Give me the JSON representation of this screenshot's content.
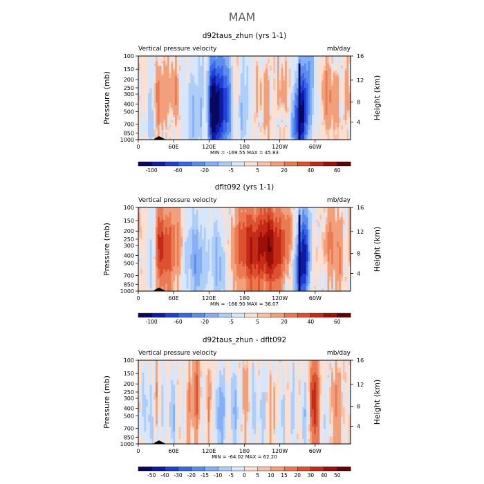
{
  "figure_title": "MAM",
  "chart_data": [
    {
      "type": "heatmap",
      "title": "d92taus_zhun (yrs 1-1)",
      "left_label": "Vertical pressure velocity",
      "right_label": "mb/day",
      "ylabel": "Pressure (mb)",
      "ylabel_right": "Height (km)",
      "y_ticks": [
        "100",
        "150",
        "200",
        "250",
        "300",
        "400",
        "500",
        "700",
        "850",
        "1000"
      ],
      "y_right_ticks": [
        "16",
        "12",
        "8",
        "4"
      ],
      "x_ticks": [
        "0",
        "60E",
        "120E",
        "180",
        "120W",
        "60W"
      ],
      "stats_text": "MIN = -169.55   MAX =   45.83",
      "levels": [
        "-100",
        "-60",
        "-20",
        "-5",
        "5",
        "20",
        "40",
        "60"
      ],
      "colors": [
        "#08085e",
        "#0d1ba5",
        "#1f3fd6",
        "#3868e8",
        "#5a8df0",
        "#86b0f6",
        "#aecdf9",
        "#d7e7fb",
        "#fbe0d2",
        "#f7c2a6",
        "#f2a07c",
        "#ea7a52",
        "#dc5230",
        "#c52a17",
        "#9b1109",
        "#600404"
      ],
      "features": {
        "dry": [
          [
            30,
            40,
            0.65
          ],
          [
            50,
            26,
            0.5
          ],
          [
            120,
            8,
            0.2
          ],
          [
            160,
            10,
            0.2
          ],
          [
            200,
            8,
            0.3
          ],
          [
            225,
            12,
            0.3
          ],
          [
            250,
            28,
            0.5
          ],
          [
            295,
            22,
            0.45
          ],
          [
            335,
            30,
            0.55
          ]
        ],
        "wet": [
          [
            10,
            10,
            0.55,
            12
          ],
          [
            22,
            5,
            1.1,
            0
          ],
          [
            55,
            12,
            0.35,
            0
          ],
          [
            77,
            5,
            0.8,
            0
          ],
          [
            88,
            4,
            0.6,
            0
          ],
          [
            97,
            5,
            0.9,
            0
          ],
          [
            106,
            4,
            0.7,
            0
          ],
          [
            125,
            6,
            1.5,
            0
          ],
          [
            137,
            10,
            2.2,
            0
          ],
          [
            152,
            5,
            1.0,
            0
          ],
          [
            175,
            5,
            0.7,
            0
          ],
          [
            185,
            5,
            0.6,
            0
          ],
          [
            230,
            4,
            0.4,
            0
          ],
          [
            280,
            13,
            2.8,
            10
          ],
          [
            305,
            4,
            0.5,
            0
          ]
        ],
        "break": 271,
        "base": -0.35
      }
    },
    {
      "type": "heatmap",
      "title": "dflt092 (yrs 1-1)",
      "left_label": "Vertical pressure velocity",
      "right_label": "mb/day",
      "ylabel": "Pressure (mb)",
      "ylabel_right": "Height (km)",
      "y_ticks": [
        "100",
        "150",
        "200",
        "250",
        "300",
        "400",
        "500",
        "700",
        "850",
        "1000"
      ],
      "y_right_ticks": [
        "16",
        "12",
        "8",
        "4"
      ],
      "x_ticks": [
        "0",
        "60E",
        "120E",
        "180",
        "120W",
        "60W"
      ],
      "stats_text": "MIN = -166.90   MAX =   38.07",
      "levels": [
        "-100",
        "-60",
        "-20",
        "-5",
        "5",
        "20",
        "40",
        "60"
      ],
      "colors": [
        "#08085e",
        "#0d1ba5",
        "#1f3fd6",
        "#3868e8",
        "#5a8df0",
        "#86b0f6",
        "#aecdf9",
        "#d7e7fb",
        "#fbe0d2",
        "#f7c2a6",
        "#f2a07c",
        "#ea7a52",
        "#dc5230",
        "#c52a17",
        "#9b1109",
        "#600404"
      ],
      "features": {
        "dry": [
          [
            32,
            30,
            0.95
          ],
          [
            50,
            18,
            0.4
          ],
          [
            170,
            40,
            0.6
          ],
          [
            205,
            30,
            0.85
          ],
          [
            235,
            26,
            0.9
          ],
          [
            300,
            16,
            0.35
          ],
          [
            330,
            30,
            0.55
          ]
        ],
        "wet": [
          [
            10,
            10,
            0.7,
            12
          ],
          [
            22,
            5,
            1.2,
            0
          ],
          [
            80,
            5,
            0.9,
            0
          ],
          [
            90,
            5,
            0.8,
            0
          ],
          [
            100,
            5,
            1.0,
            0
          ],
          [
            108,
            4,
            0.7,
            0
          ],
          [
            118,
            5,
            0.9,
            0
          ],
          [
            133,
            6,
            1.1,
            0
          ],
          [
            143,
            5,
            0.8,
            0
          ],
          [
            153,
            5,
            0.7,
            0
          ],
          [
            280,
            12,
            2.6,
            8
          ],
          [
            310,
            4,
            0.5,
            0
          ]
        ],
        "break": 271,
        "base": -0.2
      }
    },
    {
      "type": "heatmap",
      "title": "d92taus_zhun - dflt092",
      "left_label": "Vertical pressure velocity",
      "right_label": "mb/day",
      "ylabel": "Pressure (mb)",
      "ylabel_right": "Height (km)",
      "y_ticks": [
        "100",
        "150",
        "200",
        "250",
        "300",
        "400",
        "500",
        "700",
        "850",
        "1000"
      ],
      "y_right_ticks": [
        "16",
        "12",
        "8",
        "4"
      ],
      "x_ticks": [
        "0",
        "60E",
        "120E",
        "180",
        "120W",
        "60W"
      ],
      "stats_text": "MIN = -64.02   MAX =   62.20",
      "levels": [
        "-50",
        "-40",
        "-30",
        "-20",
        "-15",
        "-10",
        "-5",
        "0",
        "5",
        "10",
        "15",
        "20",
        "30",
        "40",
        "50"
      ],
      "colors": [
        "#08085e",
        "#0d1ba5",
        "#1f3fd6",
        "#3868e8",
        "#5a8df0",
        "#86b0f6",
        "#aecdf9",
        "#d7e7fb",
        "#fbe0d2",
        "#f7c2a6",
        "#f2a07c",
        "#ea7a52",
        "#dc5230",
        "#c52a17",
        "#9b1109",
        "#600404"
      ],
      "features": {
        "dry": [
          [
            30,
            5,
            0.9
          ],
          [
            85,
            4,
            0.6
          ],
          [
            100,
            6,
            1.1
          ],
          [
            120,
            5,
            0.6
          ],
          [
            180,
            4,
            0.5
          ],
          [
            230,
            8,
            0.4
          ],
          [
            298,
            7,
            1.5
          ],
          [
            335,
            8,
            0.5
          ]
        ],
        "wet": [
          [
            10,
            6,
            0.6,
            0
          ],
          [
            24,
            5,
            0.9,
            0
          ],
          [
            40,
            6,
            0.7,
            0
          ],
          [
            60,
            6,
            0.8,
            0
          ],
          [
            78,
            4,
            0.6,
            0
          ],
          [
            108,
            5,
            0.9,
            0
          ],
          [
            140,
            8,
            1.2,
            0
          ],
          [
            165,
            6,
            0.9,
            0
          ],
          [
            195,
            5,
            0.7,
            0
          ],
          [
            212,
            5,
            0.8,
            0
          ],
          [
            245,
            5,
            0.7,
            0
          ],
          [
            262,
            5,
            0.8,
            0
          ],
          [
            285,
            5,
            1.0,
            0
          ],
          [
            320,
            5,
            0.7,
            0
          ]
        ],
        "break": null,
        "base": -0.1
      }
    }
  ]
}
